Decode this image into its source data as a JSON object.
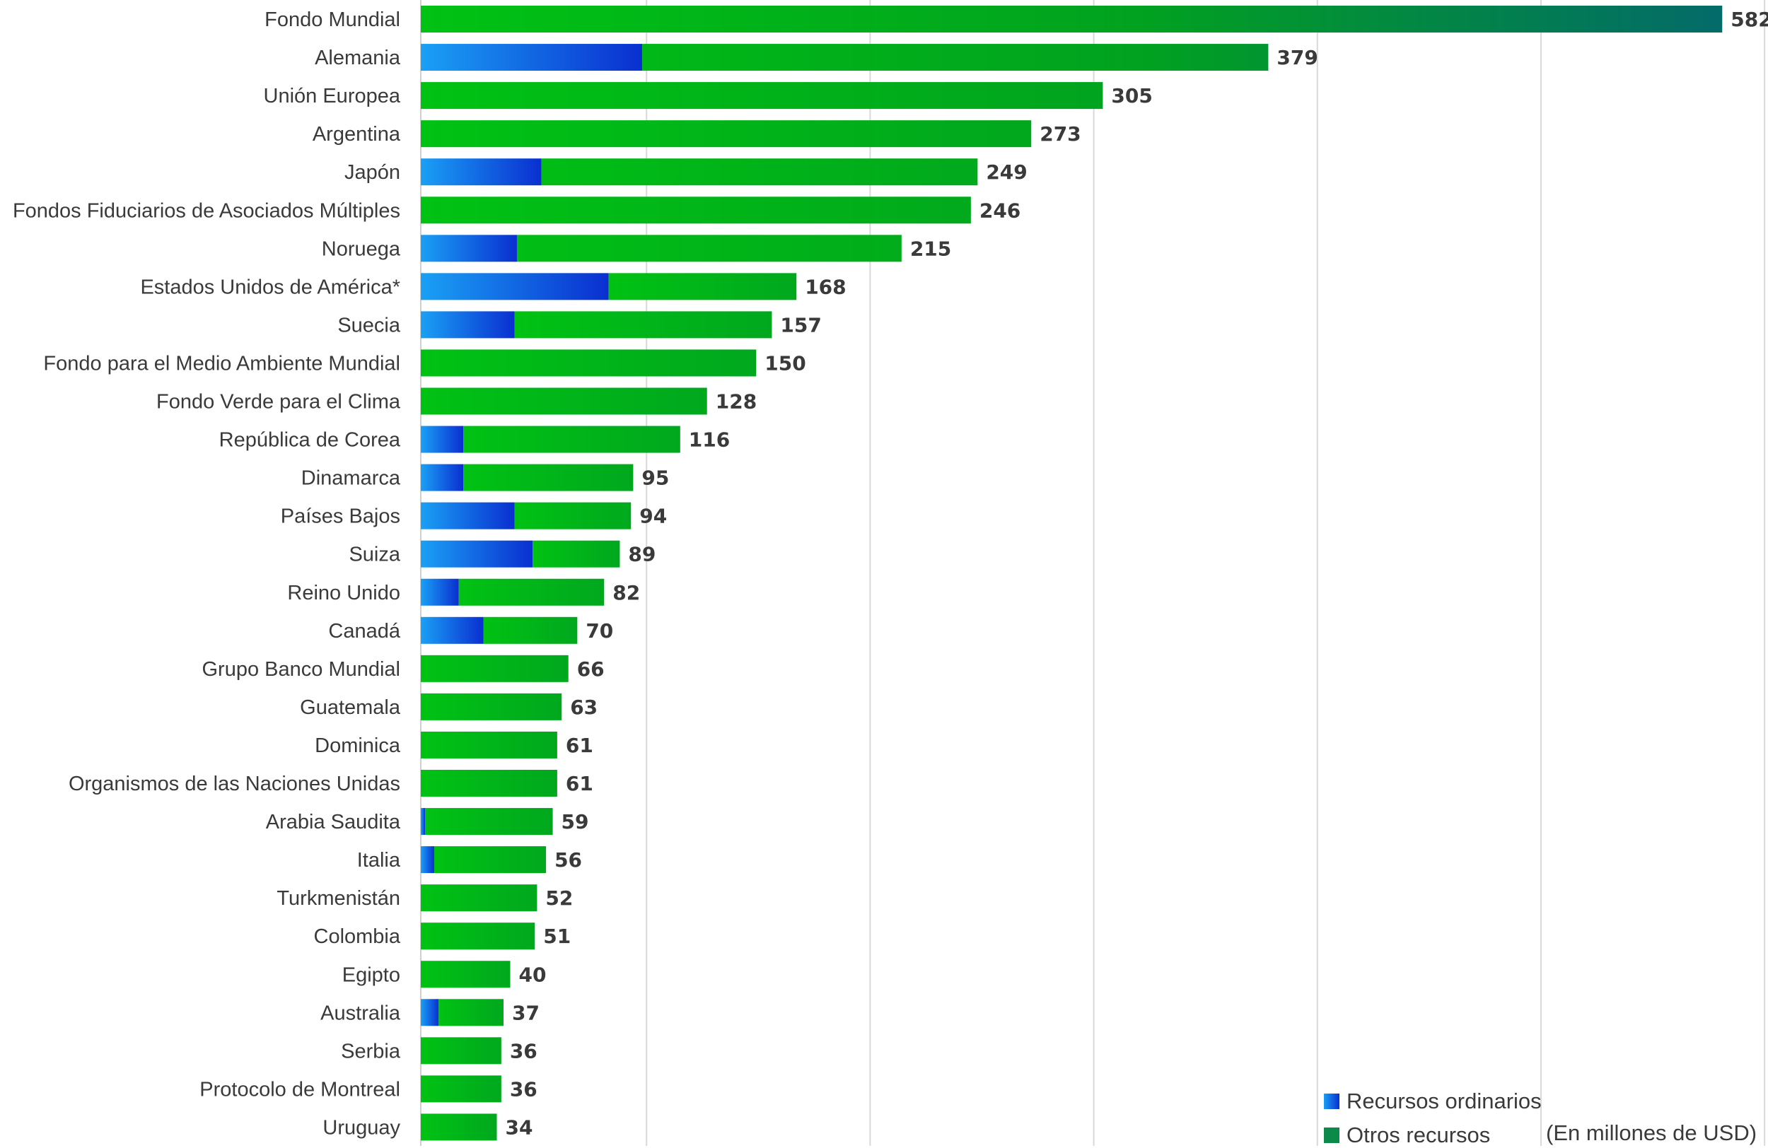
{
  "chart_data": {
    "type": "bar",
    "orientation": "horizontal",
    "stacked": true,
    "xlim": [
      0,
      600
    ],
    "grid": true,
    "unit_note": "(En millones de USD)",
    "legend": [
      {
        "name": "Recursos ordinarios",
        "color": "#0a6ae0"
      },
      {
        "name": "Otros recursos",
        "color": "#0b8a4a"
      }
    ],
    "categories": [
      "Fondo Mundial",
      "Alemania",
      "Unión Europea",
      "Argentina",
      "Japón",
      "Fondos Fiduciarios de Asociados Múltiples",
      "Noruega",
      "Estados Unidos de América*",
      "Suecia",
      "Fondo para el Medio Ambiente Mundial",
      "Fondo Verde para el Clima",
      "República de Corea",
      "Dinamarca",
      "Países Bajos",
      "Suiza",
      "Reino Unido",
      "Canadá",
      "Grupo Banco Mundial",
      "Guatemala",
      "Dominica",
      "Organismos de las Naciones Unidas",
      "Arabia Saudita",
      "Italia",
      "Turkmenistán",
      "Colombia",
      "Egipto",
      "Australia",
      "Serbia",
      "Protocolo de Montreal",
      "Uruguay"
    ],
    "series": [
      {
        "name": "Recursos ordinarios",
        "values": [
          0,
          99,
          0,
          0,
          54,
          0,
          43,
          84,
          42,
          0,
          0,
          19,
          19,
          42,
          50,
          17,
          28,
          0,
          0,
          0,
          0,
          2,
          6,
          0,
          0,
          0,
          8,
          0,
          0,
          0
        ]
      },
      {
        "name": "Otros recursos",
        "values": [
          582,
          280,
          305,
          273,
          195,
          246,
          172,
          84,
          115,
          150,
          128,
          97,
          76,
          52,
          39,
          65,
          42,
          66,
          63,
          61,
          61,
          57,
          50,
          52,
          51,
          40,
          29,
          36,
          36,
          34
        ]
      }
    ],
    "totals": [
      "582",
      "379",
      "305",
      "273",
      "249",
      "246",
      "215",
      "168",
      "157",
      "150",
      "128",
      "116",
      "95",
      "94",
      "89",
      "82",
      "70",
      "66",
      "63",
      "61",
      "61",
      "59",
      "56",
      "52",
      "51",
      "40",
      "37",
      "36",
      "36",
      "34"
    ]
  }
}
